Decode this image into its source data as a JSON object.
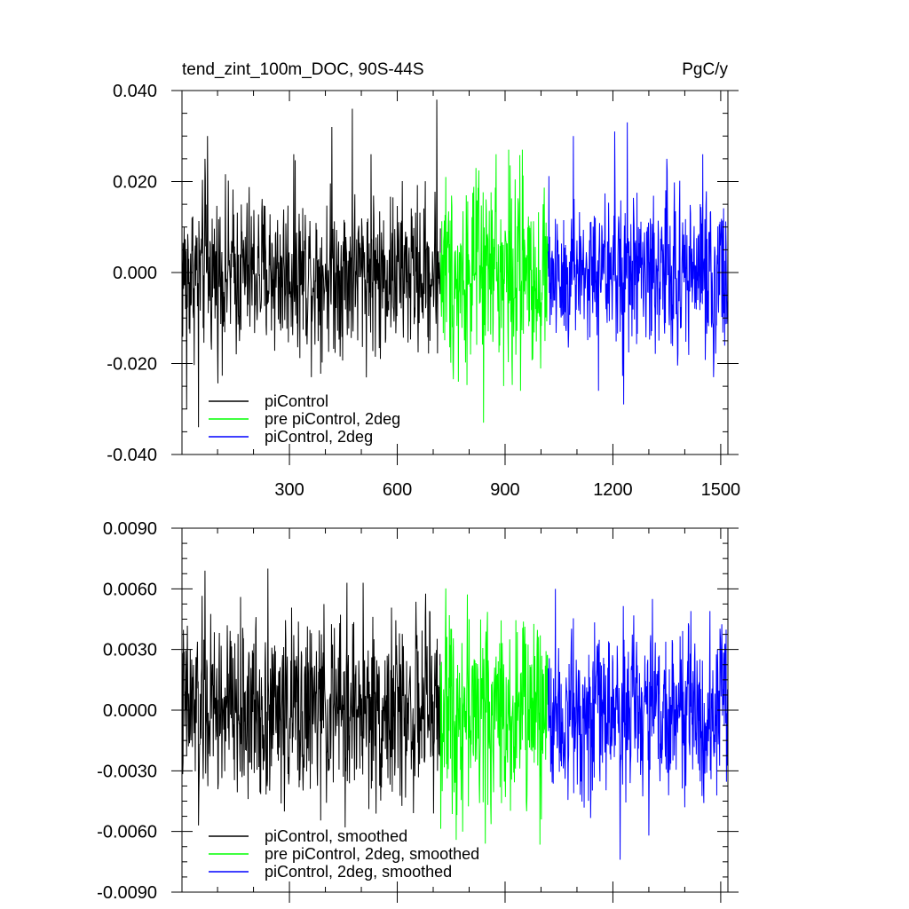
{
  "chart_data": [
    {
      "type": "line",
      "title": "tend_zint_100m_DOC, 90S-44S",
      "units": "PgC/y",
      "xlim": [
        1,
        1520
      ],
      "ylim": [
        -0.04,
        0.04
      ],
      "xticks": [
        300,
        600,
        900,
        1200,
        1500
      ],
      "xtick_labels": [
        "300",
        "600",
        "900",
        "1200",
        "1500"
      ],
      "yticks": [
        -0.04,
        -0.02,
        0.0,
        0.02,
        0.04
      ],
      "ytick_labels": [
        "-0.040",
        "-0.020",
        "0.000",
        "0.020",
        "0.040"
      ],
      "legend_position": "bottom-left",
      "series": [
        {
          "name": "piControl",
          "color": "#000000",
          "x_range": [
            1,
            720
          ],
          "amplitude": 0.0095,
          "mean": 0.0,
          "spikes": [
            [
              14,
              -0.03
            ],
            [
              47,
              -0.034
            ],
            [
              65,
              0.025
            ],
            [
              72,
              0.03
            ],
            [
              312,
              0.026
            ],
            [
              418,
              0.032
            ],
            [
              475,
              0.036
            ],
            [
              527,
              0.026
            ],
            [
              553,
              -0.019
            ],
            [
              710,
              0.038
            ]
          ]
        },
        {
          "name": "pre piControl, 2deg",
          "color": "#00ff00",
          "x_range": [
            720,
            1020
          ],
          "amplitude": 0.011,
          "mean": 0.0,
          "spikes": [
            [
              735,
              0.021
            ],
            [
              770,
              -0.024
            ],
            [
              875,
              0.026
            ],
            [
              910,
              0.027
            ],
            [
              943,
              -0.026
            ],
            [
              948,
              0.027
            ],
            [
              840,
              -0.033
            ]
          ]
        },
        {
          "name": "piControl, 2deg",
          "color": "#0000ff",
          "x_range": [
            1020,
            1520
          ],
          "amplitude": 0.0095,
          "mean": 0.0,
          "spikes": [
            [
              1090,
              0.03
            ],
            [
              1160,
              -0.026
            ],
            [
              1205,
              0.031
            ],
            [
              1230,
              -0.029
            ],
            [
              1240,
              0.033
            ],
            [
              1350,
              0.025
            ],
            [
              1450,
              0.026
            ],
            [
              1480,
              -0.023
            ]
          ]
        }
      ]
    },
    {
      "type": "line",
      "xlim": [
        1,
        1520
      ],
      "ylim": [
        -0.009,
        0.009
      ],
      "xticks": [
        300,
        600,
        900,
        1200,
        1500
      ],
      "yticks": [
        -0.009,
        -0.006,
        -0.003,
        0.0,
        0.003,
        0.006,
        0.009
      ],
      "ytick_labels": [
        "-0.0090",
        "-0.0060",
        "-0.0030",
        "0.0000",
        "0.0030",
        "0.0060",
        "0.0090"
      ],
      "legend_position": "bottom-left",
      "series": [
        {
          "name": "piControl, smoothed",
          "color": "#000000",
          "x_range": [
            1,
            720
          ],
          "amplitude": 0.0024,
          "mean": 0.0,
          "spikes": [
            [
              65,
              0.0069
            ],
            [
              240,
              0.007
            ],
            [
              460,
              0.0063
            ],
            [
              505,
              0.0063
            ],
            [
              47,
              -0.0057
            ],
            [
              455,
              -0.0058
            ],
            [
              690,
              0.0049
            ]
          ]
        },
        {
          "name": "pre piControl, 2deg, smoothed",
          "color": "#00ff00",
          "x_range": [
            720,
            1020
          ],
          "amplitude": 0.0026,
          "mean": 0.0,
          "spikes": [
            [
              745,
              0.0047
            ],
            [
              800,
              0.0045
            ],
            [
              845,
              -0.0066
            ],
            [
              890,
              -0.0046
            ],
            [
              960,
              -0.005
            ]
          ]
        },
        {
          "name": "piControl, 2deg, smoothed",
          "color": "#0000ff",
          "x_range": [
            1020,
            1520
          ],
          "amplitude": 0.0022,
          "mean": 0.0,
          "spikes": [
            [
              1040,
              0.006
            ],
            [
              1220,
              -0.0074
            ],
            [
              1300,
              -0.0062
            ],
            [
              1310,
              0.0055
            ],
            [
              1400,
              -0.0048
            ],
            [
              1470,
              0.0049
            ]
          ]
        }
      ]
    }
  ]
}
